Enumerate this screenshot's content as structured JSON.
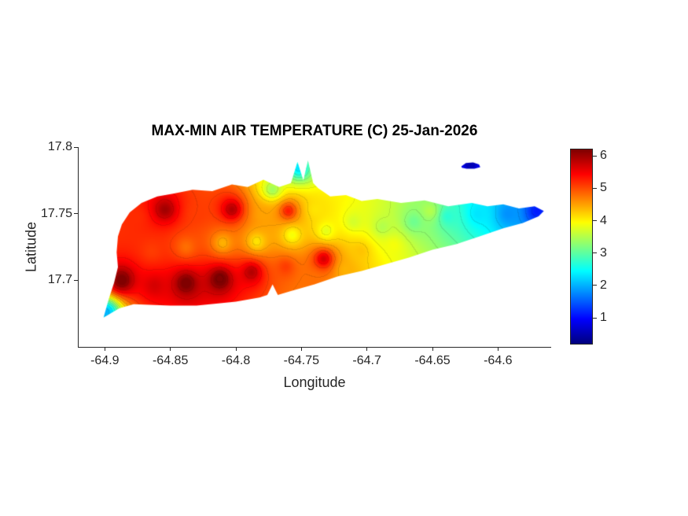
{
  "chart_data": {
    "type": "heatmap",
    "title": "MAX-MIN AIR TEMPERATURE (C) 25-Jan-2026",
    "xlabel": "Longitude",
    "ylabel": "Latitude",
    "xlim": [
      -64.92,
      -64.56
    ],
    "ylim": [
      17.65,
      17.8
    ],
    "grid": false,
    "colormap": "jet",
    "value_range": [
      0.2,
      6.2
    ],
    "contour_interval": 0.3,
    "xticks": [
      {
        "value": -64.9,
        "label": "-64.9"
      },
      {
        "value": -64.85,
        "label": "-64.85"
      },
      {
        "value": -64.8,
        "label": "-64.8"
      },
      {
        "value": -64.75,
        "label": "-64.75"
      },
      {
        "value": -64.7,
        "label": "-64.7"
      },
      {
        "value": -64.65,
        "label": "-64.65"
      },
      {
        "value": -64.6,
        "label": "-64.6"
      }
    ],
    "yticks": [
      {
        "value": 17.7,
        "label": "17.7"
      },
      {
        "value": 17.75,
        "label": "17.75"
      },
      {
        "value": 17.8,
        "label": "17.8"
      }
    ],
    "colorbar": {
      "position": "right",
      "ticks": [
        {
          "value": 1,
          "label": "1"
        },
        {
          "value": 2,
          "label": "2"
        },
        {
          "value": 3,
          "label": "3"
        },
        {
          "value": 4,
          "label": "4"
        },
        {
          "value": 5,
          "label": "5"
        },
        {
          "value": 6,
          "label": "6"
        }
      ]
    },
    "points": [
      {
        "lon": -64.887,
        "lat": 17.7,
        "value": 6.3
      },
      {
        "lon": -64.862,
        "lat": 17.696,
        "value": 5.7
      },
      {
        "lon": -64.838,
        "lat": 17.698,
        "value": 6.3
      },
      {
        "lon": -64.812,
        "lat": 17.701,
        "value": 6.4
      },
      {
        "lon": -64.788,
        "lat": 17.706,
        "value": 5.9
      },
      {
        "lon": -64.762,
        "lat": 17.71,
        "value": 5.1
      },
      {
        "lon": -64.733,
        "lat": 17.716,
        "value": 5.7
      },
      {
        "lon": -64.705,
        "lat": 17.722,
        "value": 4.3
      },
      {
        "lon": -64.68,
        "lat": 17.726,
        "value": 3.9
      },
      {
        "lon": -64.876,
        "lat": 17.747,
        "value": 5.2
      },
      {
        "lon": -64.854,
        "lat": 17.753,
        "value": 6.0
      },
      {
        "lon": -64.829,
        "lat": 17.75,
        "value": 5.1
      },
      {
        "lon": -64.803,
        "lat": 17.753,
        "value": 5.9
      },
      {
        "lon": -64.779,
        "lat": 17.749,
        "value": 4.5
      },
      {
        "lon": -64.76,
        "lat": 17.752,
        "value": 5.3
      },
      {
        "lon": -64.739,
        "lat": 17.753,
        "value": 4.1
      },
      {
        "lon": -64.864,
        "lat": 17.722,
        "value": 5.1
      },
      {
        "lon": -64.838,
        "lat": 17.725,
        "value": 4.8
      },
      {
        "lon": -64.81,
        "lat": 17.728,
        "value": 4.4
      },
      {
        "lon": -64.784,
        "lat": 17.729,
        "value": 4.1
      },
      {
        "lon": -64.757,
        "lat": 17.734,
        "value": 3.9
      },
      {
        "lon": -64.731,
        "lat": 17.737,
        "value": 3.8
      },
      {
        "lon": -64.752,
        "lat": 17.784,
        "value": 2.3
      },
      {
        "lon": -64.772,
        "lat": 17.768,
        "value": 3.4
      },
      {
        "lon": -64.899,
        "lat": 17.676,
        "value": 2.0
      },
      {
        "lon": -64.71,
        "lat": 17.744,
        "value": 3.7
      },
      {
        "lon": -64.688,
        "lat": 17.74,
        "value": 3.5
      },
      {
        "lon": -64.664,
        "lat": 17.744,
        "value": 3.1
      },
      {
        "lon": -64.652,
        "lat": 17.752,
        "value": 3.5
      },
      {
        "lon": -64.638,
        "lat": 17.748,
        "value": 2.7
      },
      {
        "lon": -64.615,
        "lat": 17.75,
        "value": 2.3
      },
      {
        "lon": -64.592,
        "lat": 17.75,
        "value": 1.8
      },
      {
        "lon": -64.57,
        "lat": 17.752,
        "value": 1.1
      },
      {
        "lon": -64.621,
        "lat": 17.787,
        "value": 0.5
      },
      {
        "lon": -64.742,
        "lat": 17.7,
        "value": 4.8
      },
      {
        "lon": -64.716,
        "lat": 17.708,
        "value": 4.4
      }
    ],
    "islands": [
      {
        "name": "st-croix",
        "outline": [
          [
            -64.901,
            17.672
          ],
          [
            -64.889,
            17.679
          ],
          [
            -64.878,
            17.682
          ],
          [
            -64.85,
            17.681
          ],
          [
            -64.83,
            17.681
          ],
          [
            -64.8,
            17.684
          ],
          [
            -64.782,
            17.687
          ],
          [
            -64.776,
            17.689
          ],
          [
            -64.772,
            17.697
          ],
          [
            -64.768,
            17.689
          ],
          [
            -64.758,
            17.692
          ],
          [
            -64.74,
            17.697
          ],
          [
            -64.722,
            17.703
          ],
          [
            -64.704,
            17.707
          ],
          [
            -64.686,
            17.712
          ],
          [
            -64.668,
            17.717
          ],
          [
            -64.65,
            17.723
          ],
          [
            -64.632,
            17.727
          ],
          [
            -64.614,
            17.733
          ],
          [
            -64.596,
            17.739
          ],
          [
            -64.581,
            17.743
          ],
          [
            -64.569,
            17.748
          ],
          [
            -64.565,
            17.752
          ],
          [
            -64.572,
            17.7555
          ],
          [
            -64.584,
            17.754
          ],
          [
            -64.596,
            17.757
          ],
          [
            -64.608,
            17.7555
          ],
          [
            -64.62,
            17.758
          ],
          [
            -64.638,
            17.7555
          ],
          [
            -64.656,
            17.76
          ],
          [
            -64.674,
            17.758
          ],
          [
            -64.692,
            17.761
          ],
          [
            -64.704,
            17.7595
          ],
          [
            -64.716,
            17.764
          ],
          [
            -64.728,
            17.763
          ],
          [
            -64.737,
            17.769
          ],
          [
            -64.741,
            17.773
          ],
          [
            -64.745,
            17.79
          ],
          [
            -64.7485,
            17.775
          ],
          [
            -64.753,
            17.789
          ],
          [
            -64.758,
            17.773
          ],
          [
            -64.767,
            17.77
          ],
          [
            -64.779,
            17.7755
          ],
          [
            -64.791,
            17.77
          ],
          [
            -64.803,
            17.772
          ],
          [
            -64.818,
            17.767
          ],
          [
            -64.833,
            17.768
          ],
          [
            -64.848,
            17.765
          ],
          [
            -64.86,
            17.763
          ],
          [
            -64.872,
            17.758
          ],
          [
            -64.881,
            17.751
          ],
          [
            -64.887,
            17.742
          ],
          [
            -64.89,
            17.733
          ],
          [
            -64.891,
            17.721
          ],
          [
            -64.89,
            17.71
          ],
          [
            -64.893,
            17.698
          ],
          [
            -64.897,
            17.686
          ]
        ]
      },
      {
        "name": "buck-island",
        "outline": [
          [
            -64.628,
            17.7855
          ],
          [
            -64.6245,
            17.788
          ],
          [
            -64.619,
            17.7885
          ],
          [
            -64.6145,
            17.787
          ],
          [
            -64.6135,
            17.785
          ],
          [
            -64.618,
            17.7838
          ],
          [
            -64.624,
            17.7838
          ],
          [
            -64.6275,
            17.7845
          ]
        ]
      }
    ]
  }
}
